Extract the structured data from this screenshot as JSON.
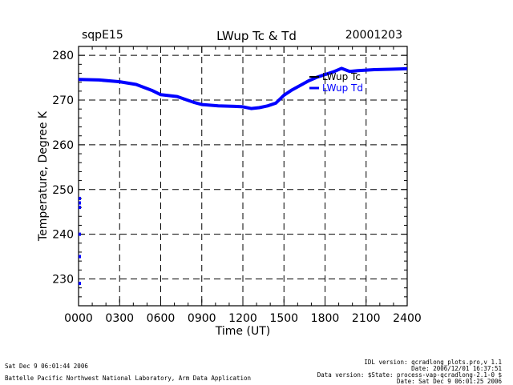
{
  "header": {
    "site": "sqpE15",
    "title": "LWup Tc & Td",
    "date": "20001203"
  },
  "footer": {
    "generated": "Sat Dec  9 06:01:44 2006",
    "lab": "Battelle Pacific Northwest National Laboratory, Arm Data Application",
    "idl_version": "IDL version: qcradlong_plots.pro,v 1.1",
    "file_date": "Date: 2006/12/01 16:37:51",
    "data_version": "Data version: $State: process-vap-qcradlong-2.1-0 $",
    "data_date": "Date: Sat Dec  9 06:01:25 2006"
  },
  "colors": {
    "tc": "#000000",
    "td": "#0000ff"
  },
  "chart_data": {
    "type": "line",
    "title": "LWup Tc & Td",
    "xlabel": "Time (UT)",
    "ylabel": "Temperature, Degree K",
    "xlim": [
      0,
      2400
    ],
    "ylim": [
      224,
      282
    ],
    "xticks": [
      0,
      300,
      600,
      900,
      1200,
      1500,
      1800,
      2100,
      2400
    ],
    "xtick_labels": [
      "0000",
      "0300",
      "0600",
      "0900",
      "1200",
      "1500",
      "1800",
      "2100",
      "2400"
    ],
    "yticks": [
      230,
      240,
      250,
      260,
      270,
      280
    ],
    "ytick_labels": [
      "230",
      "240",
      "250",
      "260",
      "270",
      "280"
    ],
    "grid": true,
    "legend_position": "top-right",
    "series": [
      {
        "name": "LWup Tc",
        "color": "#000000",
        "x": [
          0,
          150,
          300,
          420,
          540,
          600,
          720,
          840,
          900,
          1020,
          1140,
          1200,
          1260,
          1320,
          1380,
          1440,
          1500,
          1560,
          1620,
          1680,
          1740,
          1800,
          1860,
          1920,
          1980,
          2040,
          2160,
          2280,
          2400
        ],
        "y": [
          274.5,
          274.4,
          274.0,
          273.4,
          272.0,
          271.1,
          270.7,
          269.4,
          268.9,
          268.6,
          268.5,
          268.4,
          268.0,
          268.2,
          268.6,
          269.2,
          271.0,
          272.2,
          273.2,
          274.2,
          275.0,
          275.6,
          276.2,
          277.0,
          276.3,
          276.5,
          276.7,
          276.8,
          276.9
        ]
      },
      {
        "name": "LWup Td",
        "color": "#0000ff",
        "x": [
          0,
          150,
          300,
          420,
          540,
          600,
          720,
          840,
          900,
          1020,
          1140,
          1200,
          1260,
          1320,
          1380,
          1440,
          1500,
          1560,
          1620,
          1680,
          1740,
          1800,
          1860,
          1920,
          1980,
          2040,
          2160,
          2280,
          2400
        ],
        "y": [
          274.6,
          274.5,
          274.1,
          273.5,
          272.1,
          271.2,
          270.8,
          269.5,
          269.0,
          268.7,
          268.6,
          268.5,
          268.1,
          268.3,
          268.7,
          269.3,
          271.1,
          272.3,
          273.3,
          274.3,
          275.1,
          275.7,
          276.3,
          277.1,
          276.4,
          276.6,
          276.8,
          276.9,
          277.0
        ]
      }
    ]
  }
}
